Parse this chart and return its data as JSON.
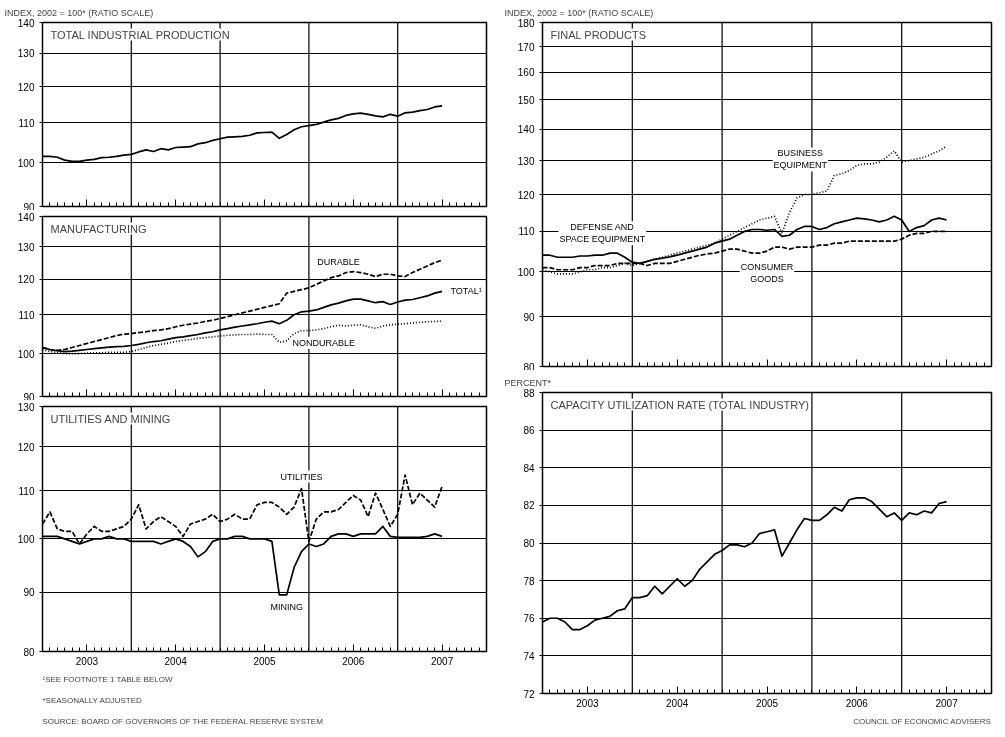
{
  "chart_data": [
    {
      "type": "line",
      "title": "TOTAL INDUSTRIAL PRODUCTION",
      "ylabel": "INDEX, 2002 = 100* (RATIO SCALE)",
      "log": true,
      "grid": "y",
      "tick_labels": "y",
      "xlim": [
        "2003-01",
        "2008-01"
      ],
      "xticks": [
        {
          "value": "2003-07",
          "label": "2003"
        },
        {
          "value": "2004-07",
          "label": "2004"
        },
        {
          "value": "2005-07",
          "label": "2005"
        },
        {
          "value": "2006-07",
          "label": "2006"
        },
        {
          "value": "2007-07",
          "label": "2007"
        }
      ],
      "ylim": [
        90,
        140
      ],
      "yticks": [
        90,
        100,
        110,
        120,
        130,
        140
      ],
      "ref_lines": [
        {
          "axis": "x",
          "value": "2004-01"
        },
        {
          "axis": "x",
          "value": "2005-01"
        },
        {
          "axis": "x",
          "value": "2006-01"
        },
        {
          "axis": "x",
          "value": "2007-01"
        }
      ],
      "x": [
        "2003-01",
        "2003-02",
        "2003-03",
        "2003-04",
        "2003-05",
        "2003-06",
        "2003-07",
        "2003-08",
        "2003-09",
        "2003-10",
        "2003-11",
        "2003-12",
        "2004-01",
        "2004-02",
        "2004-03",
        "2004-04",
        "2004-05",
        "2004-06",
        "2004-07",
        "2004-08",
        "2004-09",
        "2004-10",
        "2004-11",
        "2004-12",
        "2005-01",
        "2005-02",
        "2005-03",
        "2005-04",
        "2005-05",
        "2005-06",
        "2005-07",
        "2005-08",
        "2005-09",
        "2005-10",
        "2005-11",
        "2005-12",
        "2006-01",
        "2006-02",
        "2006-03",
        "2006-04",
        "2006-05",
        "2006-06",
        "2006-07",
        "2006-08",
        "2006-09",
        "2006-10",
        "2006-11",
        "2006-12",
        "2007-01",
        "2007-02",
        "2007-03",
        "2007-04",
        "2007-05",
        "2007-06",
        "2007-07"
      ],
      "series": [
        {
          "color": "#000000",
          "line_style": "solid",
          "values": [
            101.5,
            101.5,
            101.3,
            100.6,
            100.3,
            100.3,
            100.6,
            100.8,
            101.2,
            101.3,
            101.5,
            101.8,
            102.0,
            102.6,
            103.1,
            102.7,
            103.4,
            103.1,
            103.7,
            103.8,
            103.9,
            104.6,
            104.9,
            105.5,
            105.9,
            106.3,
            106.4,
            106.5,
            106.8,
            107.4,
            107.5,
            107.6,
            106.0,
            107.0,
            108.2,
            109.0,
            109.3,
            109.6,
            110.2,
            110.8,
            111.2,
            112.0,
            112.4,
            112.6,
            112.3,
            111.9,
            111.6,
            112.3,
            111.8,
            112.7,
            112.9,
            113.3,
            113.6,
            114.3,
            114.6
          ]
        }
      ]
    },
    {
      "type": "line",
      "title": "MANUFACTURING",
      "log": true,
      "grid": "y",
      "tick_labels": "y",
      "xlim": [
        "2003-01",
        "2008-01"
      ],
      "xticks": [
        {
          "value": "2003-07",
          "label": "2003"
        },
        {
          "value": "2004-07",
          "label": "2004"
        },
        {
          "value": "2005-07",
          "label": "2005"
        },
        {
          "value": "2006-07",
          "label": "2006"
        },
        {
          "value": "2007-07",
          "label": "2007"
        }
      ],
      "ylim": [
        90,
        140
      ],
      "yticks": [
        90,
        100,
        110,
        120,
        130,
        140
      ],
      "ref_lines": [
        {
          "axis": "x",
          "value": "2004-01"
        },
        {
          "axis": "x",
          "value": "2005-01"
        },
        {
          "axis": "x",
          "value": "2006-01"
        },
        {
          "axis": "x",
          "value": "2007-01"
        }
      ],
      "x": [
        "2003-01",
        "2003-02",
        "2003-03",
        "2003-04",
        "2003-05",
        "2003-06",
        "2003-07",
        "2003-08",
        "2003-09",
        "2003-10",
        "2003-11",
        "2003-12",
        "2004-01",
        "2004-02",
        "2004-03",
        "2004-04",
        "2004-05",
        "2004-06",
        "2004-07",
        "2004-08",
        "2004-09",
        "2004-10",
        "2004-11",
        "2004-12",
        "2005-01",
        "2005-02",
        "2005-03",
        "2005-04",
        "2005-05",
        "2005-06",
        "2005-07",
        "2005-08",
        "2005-09",
        "2005-10",
        "2005-11",
        "2005-12",
        "2006-01",
        "2006-02",
        "2006-03",
        "2006-04",
        "2006-05",
        "2006-06",
        "2006-07",
        "2006-08",
        "2006-09",
        "2006-10",
        "2006-11",
        "2006-12",
        "2007-01",
        "2007-02",
        "2007-03",
        "2007-04",
        "2007-05",
        "2007-06",
        "2007-07"
      ],
      "series": [
        {
          "name": "DURABLE",
          "color": "#000000",
          "line_style": "dashed",
          "values": [
            101.5,
            101,
            100.8,
            101,
            101.5,
            102,
            102.5,
            103,
            103.5,
            104,
            104.5,
            104.9,
            105,
            105.3,
            105.5,
            105.8,
            106,
            106.3,
            106.8,
            107.2,
            107.5,
            107.8,
            108.2,
            108.5,
            109,
            109.5,
            110,
            110.5,
            111,
            111.5,
            112,
            112.5,
            113,
            116,
            116.5,
            117,
            117.5,
            118.5,
            119.5,
            120.5,
            121,
            122,
            122.3,
            122,
            121.5,
            120.8,
            121.5,
            121.5,
            121,
            120.8,
            122,
            123,
            124,
            125,
            125.8
          ]
        },
        {
          "name": "TOTAL¹",
          "color": "#000000",
          "line_style": "solid",
          "values": [
            101.5,
            101,
            100.7,
            100.5,
            100.6,
            100.8,
            101,
            101.2,
            101.4,
            101.6,
            101.7,
            101.8,
            102,
            102.3,
            102.7,
            103,
            103.2,
            103.6,
            104,
            104.2,
            104.5,
            104.8,
            105.2,
            105.5,
            106,
            106.3,
            106.7,
            107,
            107.3,
            107.6,
            108,
            108.3,
            107.6,
            108.5,
            110,
            110.8,
            111,
            111.3,
            112,
            112.7,
            113.2,
            113.8,
            114.3,
            114.3,
            113.8,
            113.3,
            113.6,
            112.8,
            113.5,
            114,
            114.2,
            114.7,
            115.2,
            116,
            116.5
          ]
        },
        {
          "name": "NONDURABLE",
          "color": "#000000",
          "line_style": "dotted",
          "values": [
            101,
            100.5,
            100.3,
            100,
            100,
            100,
            100.1,
            100.2,
            100.2,
            100.3,
            100.3,
            100.3,
            100.5,
            101,
            101.5,
            102,
            102.3,
            102.6,
            103,
            103.3,
            103.5,
            103.8,
            104,
            104.2,
            104.4,
            104.6,
            104.7,
            104.8,
            104.8,
            104.9,
            104.8,
            104.8,
            102.8,
            103.2,
            105,
            105.8,
            105.8,
            106,
            106.3,
            106.8,
            107.2,
            107,
            107.2,
            107.3,
            106.8,
            106.4,
            107,
            107.3,
            107.5,
            107.6,
            107.8,
            108,
            108.1,
            108.2,
            108.3
          ]
        }
      ]
    },
    {
      "type": "line",
      "title": "UTILITIES AND MINING",
      "log": true,
      "grid": "y",
      "xlim": [
        "2003-01",
        "2008-01"
      ],
      "xticks": [
        {
          "value": "2003-07",
          "label": "2003"
        },
        {
          "value": "2004-07",
          "label": "2004"
        },
        {
          "value": "2005-07",
          "label": "2005"
        },
        {
          "value": "2006-07",
          "label": "2006"
        },
        {
          "value": "2007-07",
          "label": "2007"
        }
      ],
      "ylim": [
        80,
        130
      ],
      "yticks": [
        80,
        90,
        100,
        110,
        120,
        130
      ],
      "ref_lines": [
        {
          "axis": "x",
          "value": "2004-01"
        },
        {
          "axis": "x",
          "value": "2005-01"
        },
        {
          "axis": "x",
          "value": "2006-01"
        },
        {
          "axis": "x",
          "value": "2007-01"
        }
      ],
      "annotations": [
        "¹SEE FOOTNOTE 1 TABLE BELOW",
        "*SEASONALLY ADJUSTED",
        "SOURCE: BOARD OF GOVERNORS OF THE FEDERAL RESERVE SYSTEM"
      ],
      "x": [
        "2003-01",
        "2003-02",
        "2003-03",
        "2003-04",
        "2003-05",
        "2003-06",
        "2003-07",
        "2003-08",
        "2003-09",
        "2003-10",
        "2003-11",
        "2003-12",
        "2004-01",
        "2004-02",
        "2004-03",
        "2004-04",
        "2004-05",
        "2004-06",
        "2004-07",
        "2004-08",
        "2004-09",
        "2004-10",
        "2004-11",
        "2004-12",
        "2005-01",
        "2005-02",
        "2005-03",
        "2005-04",
        "2005-05",
        "2005-06",
        "2005-07",
        "2005-08",
        "2005-09",
        "2005-10",
        "2005-11",
        "2005-12",
        "2006-01",
        "2006-02",
        "2006-03",
        "2006-04",
        "2006-05",
        "2006-06",
        "2006-07",
        "2006-08",
        "2006-09",
        "2006-10",
        "2006-11",
        "2006-12",
        "2007-01",
        "2007-02",
        "2007-03",
        "2007-04",
        "2007-05",
        "2007-06",
        "2007-07"
      ],
      "series": [
        {
          "name": "UTILITIES",
          "color": "#000000",
          "line_style": "dashed",
          "values": [
            103,
            105.5,
            102,
            101.5,
            101.5,
            99,
            101,
            102.5,
            101.5,
            101.5,
            102,
            102.5,
            104,
            107,
            102,
            103.5,
            104.5,
            103.5,
            102.5,
            100.5,
            103,
            103.5,
            104,
            105,
            103.5,
            104,
            105,
            104,
            104,
            107,
            107.5,
            107.5,
            106.5,
            105,
            106.5,
            110.5,
            99.5,
            104,
            105.5,
            105.5,
            106,
            107.5,
            109,
            108,
            104.5,
            109.5,
            106,
            102.5,
            105,
            113.5,
            107,
            109.5,
            108,
            106.5,
            111
          ]
        },
        {
          "name": "MINING",
          "color": "#000000",
          "line_style": "solid",
          "values": [
            100.5,
            100.5,
            100.5,
            100,
            99.5,
            99,
            99.5,
            100,
            100,
            100.5,
            100,
            100,
            99.5,
            99.5,
            99.5,
            99.5,
            99,
            99.5,
            100,
            99.5,
            98.5,
            96.5,
            97.5,
            99.5,
            100,
            100,
            100.5,
            100.5,
            100,
            100,
            100,
            99.5,
            89.5,
            89.5,
            94.5,
            97.5,
            99,
            98.5,
            99,
            100.5,
            101,
            101,
            100.5,
            101,
            101,
            101,
            102.5,
            100.5,
            100.3,
            100.3,
            100.3,
            100.3,
            100.5,
            101,
            100.5
          ]
        }
      ]
    },
    {
      "type": "line",
      "title": "FINAL PRODUCTS",
      "ylabel": "INDEX, 2002 = 100* (RATIO SCALE)",
      "log": true,
      "grid": "y",
      "tick_labels": "y",
      "xlim": [
        "2003-01",
        "2008-01"
      ],
      "xticks": [
        {
          "value": "2003-07",
          "label": "2003"
        },
        {
          "value": "2004-07",
          "label": "2004"
        },
        {
          "value": "2005-07",
          "label": "2005"
        },
        {
          "value": "2006-07",
          "label": "2006"
        },
        {
          "value": "2007-07",
          "label": "2007"
        }
      ],
      "ylim": [
        80,
        180
      ],
      "yticks": [
        80,
        90,
        100,
        110,
        120,
        130,
        140,
        150,
        160,
        170,
        180
      ],
      "ref_lines": [
        {
          "axis": "x",
          "value": "2004-01"
        },
        {
          "axis": "x",
          "value": "2005-01"
        },
        {
          "axis": "x",
          "value": "2006-01"
        },
        {
          "axis": "x",
          "value": "2007-01"
        }
      ],
      "x": [
        "2003-01",
        "2003-02",
        "2003-03",
        "2003-04",
        "2003-05",
        "2003-06",
        "2003-07",
        "2003-08",
        "2003-09",
        "2003-10",
        "2003-11",
        "2003-12",
        "2004-01",
        "2004-02",
        "2004-03",
        "2004-04",
        "2004-05",
        "2004-06",
        "2004-07",
        "2004-08",
        "2004-09",
        "2004-10",
        "2004-11",
        "2004-12",
        "2005-01",
        "2005-02",
        "2005-03",
        "2005-04",
        "2005-05",
        "2005-06",
        "2005-07",
        "2005-08",
        "2005-09",
        "2005-10",
        "2005-11",
        "2005-12",
        "2006-01",
        "2006-02",
        "2006-03",
        "2006-04",
        "2006-05",
        "2006-06",
        "2006-07",
        "2006-08",
        "2006-09",
        "2006-10",
        "2006-11",
        "2006-12",
        "2007-01",
        "2007-02",
        "2007-03",
        "2007-04",
        "2007-05",
        "2007-06",
        "2007-07"
      ],
      "series": [
        {
          "name": "DEFENSE AND SPACE EQUIPMENT",
          "color": "#000000",
          "line_style": "solid",
          "values": [
            104,
            104,
            103.5,
            103.5,
            103.5,
            103.8,
            103.8,
            104,
            104,
            104.5,
            104.5,
            103.5,
            102.3,
            102,
            102.5,
            103,
            103.3,
            103.6,
            104,
            104.5,
            105,
            105.5,
            106,
            107,
            107.5,
            108,
            109,
            110,
            110.5,
            110.5,
            110.3,
            110.5,
            108.7,
            109,
            110.5,
            111.3,
            111.3,
            110.5,
            111,
            112,
            112.5,
            113,
            113.5,
            113.3,
            113,
            112.5,
            113,
            114,
            113,
            110,
            111,
            111.5,
            113,
            113.5,
            113
          ]
        },
        {
          "name": "BUSINESS EQUIPMENT",
          "color": "#000000",
          "line_style": "dotted",
          "values": [
            100.5,
            100,
            99.5,
            99.5,
            99.5,
            100,
            100.5,
            100.5,
            101,
            101,
            101.5,
            102,
            101.5,
            102,
            102.5,
            103,
            103.5,
            104,
            104.5,
            105,
            105.5,
            106,
            106.5,
            107,
            108,
            109,
            110,
            111,
            112,
            113,
            113.5,
            114,
            109.5,
            115,
            119,
            120,
            120,
            120.5,
            121,
            125.5,
            126,
            127,
            128.5,
            129,
            129,
            129.5,
            131,
            133,
            129.5,
            130,
            130.5,
            131,
            132,
            133,
            134.5
          ]
        },
        {
          "name": "CONSUMER GOODS",
          "color": "#000000",
          "line_style": "dashed",
          "values": [
            101,
            101,
            100.5,
            100.5,
            100.5,
            101,
            101,
            101.5,
            101.5,
            101.5,
            102,
            102,
            102,
            102,
            101.5,
            102,
            102,
            102,
            102.5,
            103,
            103.5,
            104,
            104.3,
            104.5,
            105,
            105.5,
            105.5,
            105,
            104.5,
            104.5,
            105,
            106,
            106,
            105.5,
            106,
            106,
            106,
            106.5,
            106.5,
            107,
            107,
            107.5,
            107.5,
            107.5,
            107.5,
            107.5,
            107.5,
            107.5,
            108,
            109,
            109.5,
            109.5,
            110,
            110,
            110
          ]
        }
      ]
    },
    {
      "type": "line",
      "title": "CAPACITY UTILIZATION RATE (TOTAL INDUSTRY)",
      "ylabel": "PERCENT*",
      "grid": "y",
      "xlim": [
        "2003-01",
        "2008-01"
      ],
      "xticks": [
        {
          "value": "2003-07",
          "label": "2003"
        },
        {
          "value": "2004-07",
          "label": "2004"
        },
        {
          "value": "2005-07",
          "label": "2005"
        },
        {
          "value": "2006-07",
          "label": "2006"
        },
        {
          "value": "2007-07",
          "label": "2007"
        }
      ],
      "ylim": [
        72,
        88
      ],
      "yticks": [
        72,
        74,
        76,
        78,
        80,
        82,
        84,
        86,
        88
      ],
      "ref_lines": [
        {
          "axis": "x",
          "value": "2004-01"
        },
        {
          "axis": "x",
          "value": "2005-01"
        },
        {
          "axis": "x",
          "value": "2006-01"
        },
        {
          "axis": "x",
          "value": "2007-01"
        }
      ],
      "annotations": [
        "COUNCIL OF ECONOMIC ADVISERS"
      ],
      "x": [
        "2003-01",
        "2003-02",
        "2003-03",
        "2003-04",
        "2003-05",
        "2003-06",
        "2003-07",
        "2003-08",
        "2003-09",
        "2003-10",
        "2003-11",
        "2003-12",
        "2004-01",
        "2004-02",
        "2004-03",
        "2004-04",
        "2004-05",
        "2004-06",
        "2004-07",
        "2004-08",
        "2004-09",
        "2004-10",
        "2004-11",
        "2004-12",
        "2005-01",
        "2005-02",
        "2005-03",
        "2005-04",
        "2005-05",
        "2005-06",
        "2005-07",
        "2005-08",
        "2005-09",
        "2005-10",
        "2005-11",
        "2005-12",
        "2006-01",
        "2006-02",
        "2006-03",
        "2006-04",
        "2006-05",
        "2006-06",
        "2006-07",
        "2006-08",
        "2006-09",
        "2006-10",
        "2006-11",
        "2006-12",
        "2007-01",
        "2007-02",
        "2007-03",
        "2007-04",
        "2007-05",
        "2007-06",
        "2007-07"
      ],
      "series": [
        {
          "color": "#000000",
          "line_style": "solid",
          "values": [
            75.8,
            76.0,
            76.0,
            75.8,
            75.4,
            75.4,
            75.6,
            75.9,
            76.0,
            76.1,
            76.4,
            76.5,
            77.1,
            77.1,
            77.2,
            77.7,
            77.3,
            77.7,
            78.1,
            77.7,
            78.0,
            78.6,
            79.0,
            79.4,
            79.6,
            79.9,
            79.9,
            79.8,
            80.0,
            80.5,
            80.6,
            80.7,
            79.3,
            80.0,
            80.7,
            81.3,
            81.2,
            81.2,
            81.5,
            81.9,
            81.7,
            82.3,
            82.4,
            82.4,
            82.2,
            81.8,
            81.4,
            81.6,
            81.2,
            81.6,
            81.5,
            81.7,
            81.6,
            82.1,
            82.2
          ]
        }
      ]
    }
  ]
}
